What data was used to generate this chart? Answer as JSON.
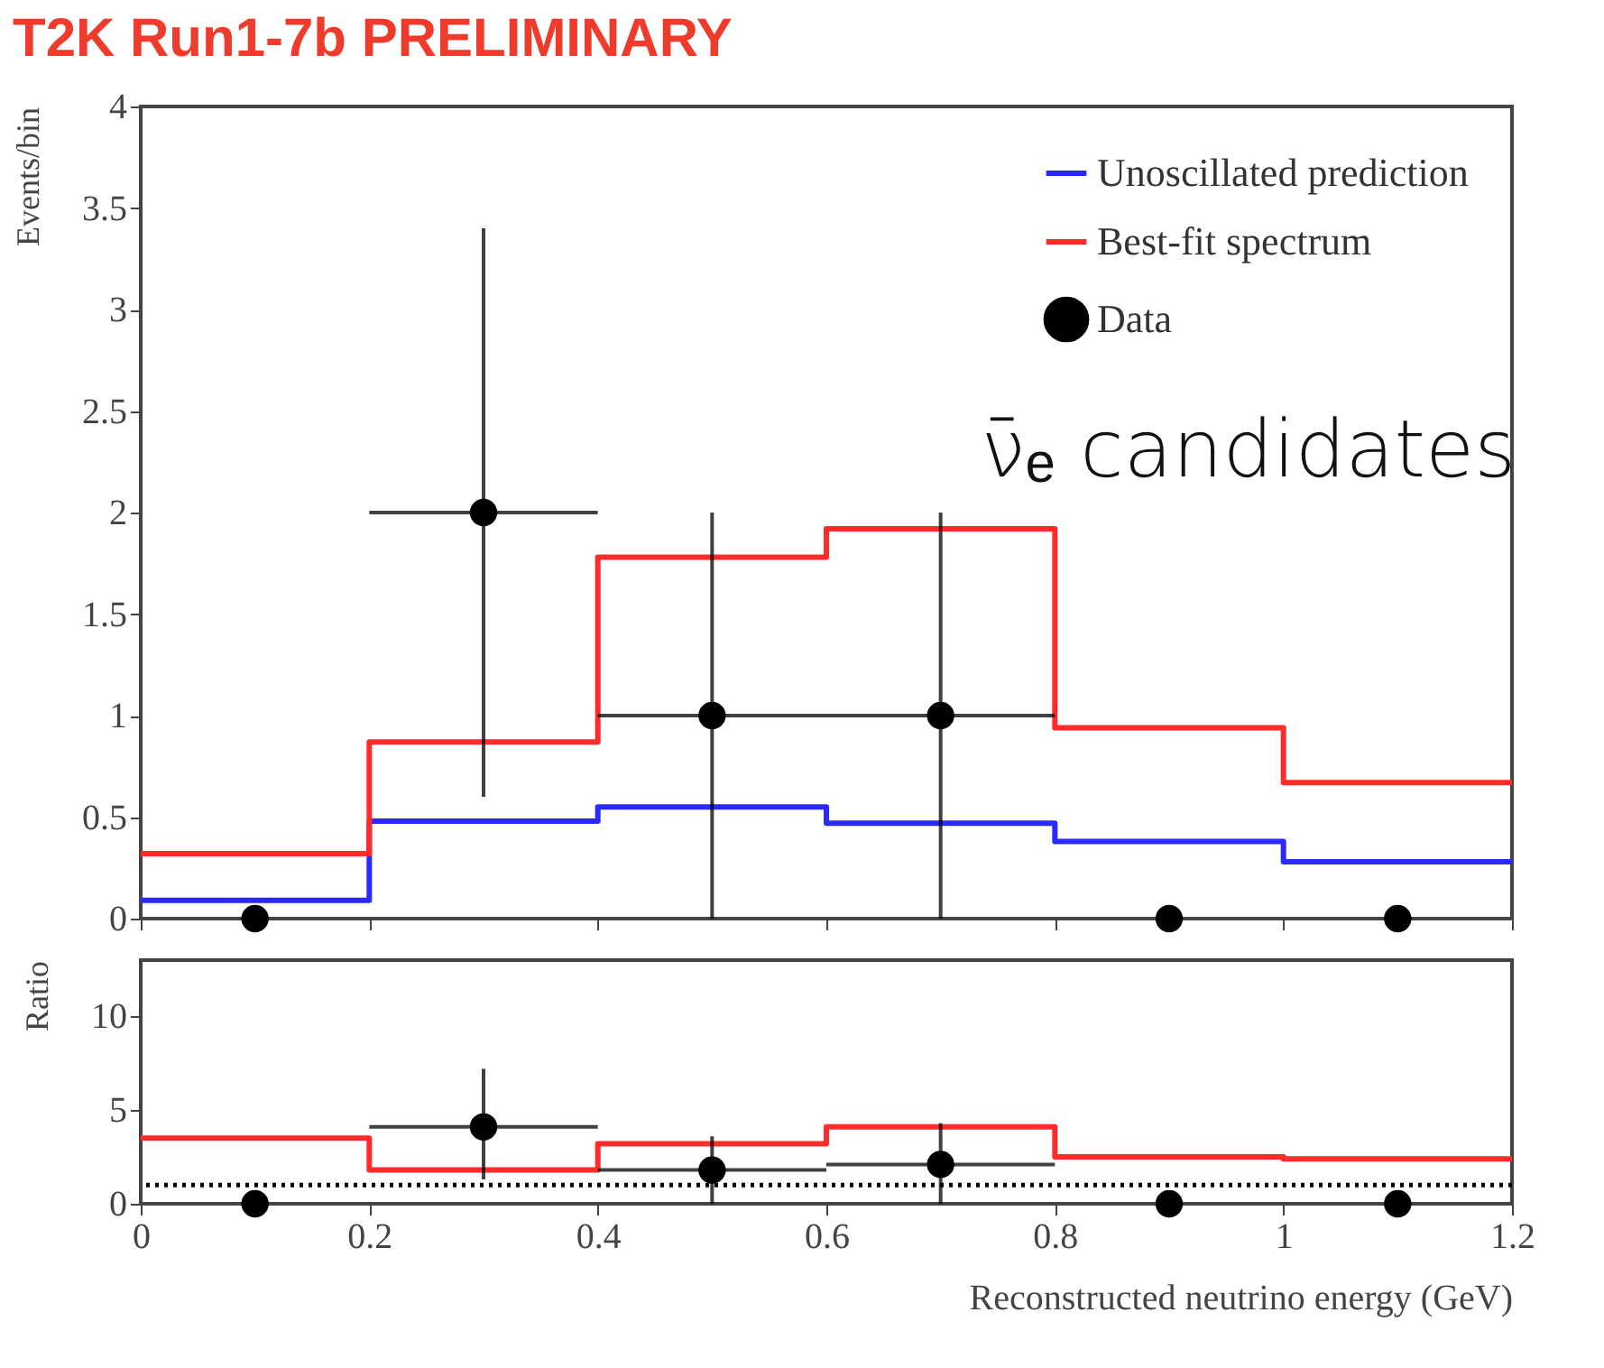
{
  "chart_data": [
    {
      "type": "step",
      "title": "T2K Run1-7b PRELIMINARY",
      "ylabel": "Events/bin",
      "annotations": [
        "ν̄ₑ candidates"
      ],
      "xlim": [
        0,
        1.2
      ],
      "xticks": [
        0,
        0.2,
        0.4,
        0.6,
        0.8,
        1,
        1.2
      ],
      "ylim": [
        0,
        4
      ],
      "yticks": [
        0,
        0.5,
        1,
        1.5,
        2,
        2.5,
        3,
        3.5,
        4
      ],
      "tick_labels": "y",
      "legend": "top right",
      "grid": false,
      "series": [
        {
          "name": "Unoscillated prediction",
          "color": "#2a2aff",
          "x": [
            0,
            0.2,
            0.4,
            0.6,
            0.8,
            1,
            1.2
          ],
          "values": [
            0.09,
            0.48,
            0.55,
            0.47,
            0.38,
            0.28,
            0.28
          ],
          "marker": "none"
        },
        {
          "name": "Best-fit spectrum",
          "color": "#ff2a2a",
          "x": [
            0,
            0.2,
            0.4,
            0.6,
            0.8,
            1,
            1.2
          ],
          "values": [
            0.32,
            0.87,
            1.78,
            1.92,
            0.94,
            0.67,
            0.67
          ],
          "marker": "none"
        },
        {
          "name": "Data",
          "type": "scatter",
          "color": "#000000",
          "marker": "circle",
          "x": [
            0.1,
            0.3,
            0.5,
            0.7,
            0.9,
            1.1
          ],
          "values": [
            0,
            2,
            1,
            1,
            0,
            0
          ],
          "errors": [
            null,
            [
              0.6,
              3.4
            ],
            [
              0,
              2
            ],
            [
              0,
              2
            ],
            null,
            null
          ],
          "xerrors": [
            null,
            0.1,
            0.1,
            0.1,
            null,
            null
          ]
        }
      ]
    },
    {
      "type": "step",
      "xlabel": "Reconstructed neutrino energy (GeV)",
      "ylabel": "Ratio",
      "xlim": [
        0,
        1.2
      ],
      "xticks": [
        0,
        0.2,
        0.4,
        0.6,
        0.8,
        1,
        1.2
      ],
      "ylim": [
        0,
        13
      ],
      "yticks": [
        0,
        5,
        10
      ],
      "grid": false,
      "ref_lines": [
        {
          "axis": "y",
          "value": 1,
          "color": "#000000",
          "line_style": "dotted"
        }
      ],
      "series": [
        {
          "color": "#ff2a2a",
          "x": [
            0,
            0.2,
            0.4,
            0.6,
            0.8,
            1,
            1.2
          ],
          "values": [
            3.5,
            1.8,
            3.2,
            4.1,
            2.5,
            2.4,
            2.4
          ],
          "marker": "none"
        },
        {
          "type": "scatter",
          "color": "#000000",
          "marker": "circle",
          "x": [
            0.1,
            0.3,
            0.5,
            0.7,
            0.9,
            1.1
          ],
          "values": [
            0,
            4.1,
            1.8,
            2.1,
            0,
            0
          ],
          "errors": [
            null,
            [
              1.3,
              7.2
            ],
            [
              0,
              3.6
            ],
            [
              0,
              4.3
            ],
            null,
            null
          ],
          "xerrors": [
            null,
            0.1,
            0.1,
            0.1,
            null,
            null
          ]
        }
      ]
    }
  ]
}
